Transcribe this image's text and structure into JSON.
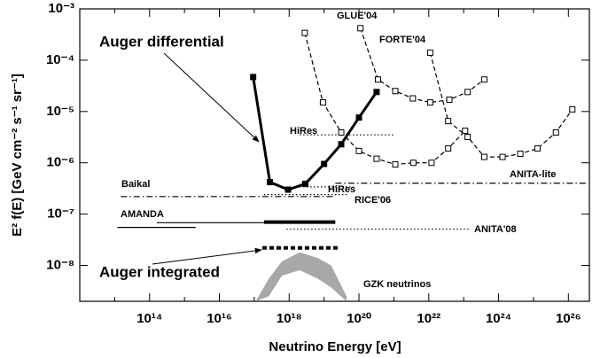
{
  "chart_data": {
    "type": "line",
    "xlabel": "Neutrino Energy [eV]",
    "ylabel": "E² f(E) [GeV cm⁻² s⁻¹ sr⁻¹]",
    "xscale": "log",
    "yscale": "log",
    "xlim": [
      1000000000000.0,
      4e+26
    ],
    "ylim": [
      2e-09,
      0.001
    ],
    "xticks": [
      {
        "value": 100000000000000.0,
        "label": "10¹⁴"
      },
      {
        "value": 1e+16,
        "label": "10¹⁶"
      },
      {
        "value": 1e+18,
        "label": "10¹⁸"
      },
      {
        "value": 1e+20,
        "label": "10²⁰"
      },
      {
        "value": 1e+22,
        "label": "10²²"
      },
      {
        "value": 1e+24,
        "label": "10²⁴"
      },
      {
        "value": 1e+26,
        "label": "10²⁶"
      }
    ],
    "xminor": [
      1000000000000.0,
      10000000000000.0,
      1000000000000000.0,
      1e+17,
      1e+19,
      1e+21,
      1e+23,
      1e+25
    ],
    "yticks": [
      {
        "value": 1e-08,
        "label": "10⁻⁸"
      },
      {
        "value": 1e-07,
        "label": "10⁻⁷"
      },
      {
        "value": 1e-06,
        "label": "10⁻⁶"
      },
      {
        "value": 1e-05,
        "label": "10⁻⁵"
      },
      {
        "value": 0.0001,
        "label": "10⁻⁴"
      },
      {
        "value": 0.001,
        "label": "10⁻³"
      }
    ],
    "series": [
      {
        "name": "Auger differential",
        "color": "#000000",
        "style": "solid",
        "width": 3,
        "marker": "filled-square",
        "x": [
          9.3e+16,
          2.8e+17,
          9.3e+17,
          2.9e+18,
          1e+19,
          3.1e+19,
          1e+20,
          3.2e+20
        ],
        "values": [
          4.7e-05,
          4.2e-07,
          3e-07,
          3.9e-07,
          9.5e-07,
          2.3e-06,
          7.6e-06,
          2.4e-05
        ]
      },
      {
        "name": "Auger integrated",
        "color": "#000000",
        "style": "dashed",
        "width": 4,
        "x": [
          1.7e+17,
          2.8e+19
        ],
        "values": [
          2.2e-08,
          2.2e-08
        ]
      },
      {
        "color": "#000000",
        "style": "solid",
        "width": 4,
        "x": [
          1.9e+17,
          2.1e+19
        ],
        "values": [
          7e-08,
          7e-08
        ]
      },
      {
        "name": "AMANDA",
        "color": "#000000",
        "style": "solid",
        "width": 1.2,
        "x": [
          12000000000000.0,
          2100000000000000.0
        ],
        "values": [
          5.5e-08,
          5.5e-08
        ]
      },
      {
        "color": "#000000",
        "style": "solid",
        "width": 1.2,
        "x": [
          160000000000000.0,
          1.9e+17
        ],
        "values": [
          6.8e-08,
          6.8e-08
        ]
      },
      {
        "name": "Baikal",
        "color": "#000000",
        "style": "dashdot",
        "width": 1.2,
        "x": [
          15000000000000.0,
          2.1e+19
        ],
        "values": [
          2.2e-07,
          2.2e-07
        ]
      },
      {
        "name": "RICE'06",
        "color": "#000000",
        "style": "dotted",
        "width": 1.2,
        "x": [
          1.9e+17,
          5.2e+19
        ],
        "values": [
          2.4e-07,
          2.4e-07
        ]
      },
      {
        "name": "HiRes",
        "color": "#000000",
        "style": "dotted",
        "width": 1.2,
        "x": [
          2e+18,
          1e+21
        ],
        "values": [
          3.5e-06,
          3.5e-06
        ]
      },
      {
        "name": "HiRes",
        "color": "#000000",
        "style": "dotted",
        "width": 1.2,
        "x": [
          2e+18,
          7e+19
        ],
        "values": [
          3.4e-07,
          3.4e-07
        ]
      },
      {
        "name": "ANITA'08",
        "color": "#000000",
        "style": "dotted",
        "width": 1.2,
        "x": [
          8.3e+17,
          1.5e+23
        ],
        "values": [
          5.1e-08,
          5.1e-08
        ]
      },
      {
        "name": "ANITA-lite",
        "color": "#000000",
        "style": "dashdot",
        "width": 1.2,
        "x": [
          2.1e+19,
          3.2e+26
        ],
        "values": [
          4e-07,
          4e-07
        ]
      },
      {
        "color": "#000000",
        "style": "dashed",
        "width": 1.2,
        "marker": "open-square",
        "x": [
          2.8e+18,
          9.3e+18,
          3.1e+19,
          1e+20,
          3.2e+20,
          1.1e+21,
          3.6e+21,
          1.2e+22,
          3.6e+22,
          1.1e+23
        ],
        "values": [
          0.00034,
          1.5e-05,
          3.9e-06,
          1.7e-06,
          1.2e-06,
          9.3e-07,
          1e-06,
          1e-06,
          1.9e-06,
          4.2e-06
        ]
      },
      {
        "name": "GLUE'04",
        "color": "#000000",
        "style": "dashed",
        "width": 1.2,
        "marker": "open-square",
        "x": [
          1.1e+20,
          3.5e+20,
          1.1e+21,
          3.5e+21,
          1.1e+22,
          3.9e+22,
          1.3e+23,
          3.9e+23
        ],
        "values": [
          0.00042,
          4.2e-05,
          2.5e-05,
          1.8e-05,
          1.5e-05,
          1.7e-05,
          2.4e-05,
          4.2e-05
        ]
      },
      {
        "name": "FORTE'04",
        "color": "#000000",
        "style": "dashed",
        "width": 1.2,
        "marker": "open-square",
        "x": [
          1.1e+22,
          3.6e+22,
          1.3e+23,
          3.9e+23,
          1.3e+24,
          4.2e+24,
          1.3e+25,
          4.4e+25,
          1.3e+26
        ],
        "values": [
          0.00014,
          6.5e-06,
          3.2e-06,
          1.3e-06,
          1.3e-06,
          1.5e-06,
          1.9e-06,
          3.9e-06,
          1.1e-05
        ]
      },
      {
        "name": "GZK neutrinos",
        "color": "#a8a8a8",
        "style": "band",
        "x": [
          1.1e+17,
          2.6e+17,
          6.2e+17,
          2e+18,
          6.6e+18,
          1.6e+19,
          4.4e+19
        ],
        "values": [
          2e-09,
          5.5e-09,
          1.2e-08,
          1.8e-08,
          1.4e-08,
          1e-08,
          2.5e-09
        ],
        "values_low": [
          2e-09,
          2.5e-09,
          6.3e-09,
          8.1e-09,
          5.5e-09,
          3.7e-09,
          2e-09
        ]
      }
    ]
  }
}
